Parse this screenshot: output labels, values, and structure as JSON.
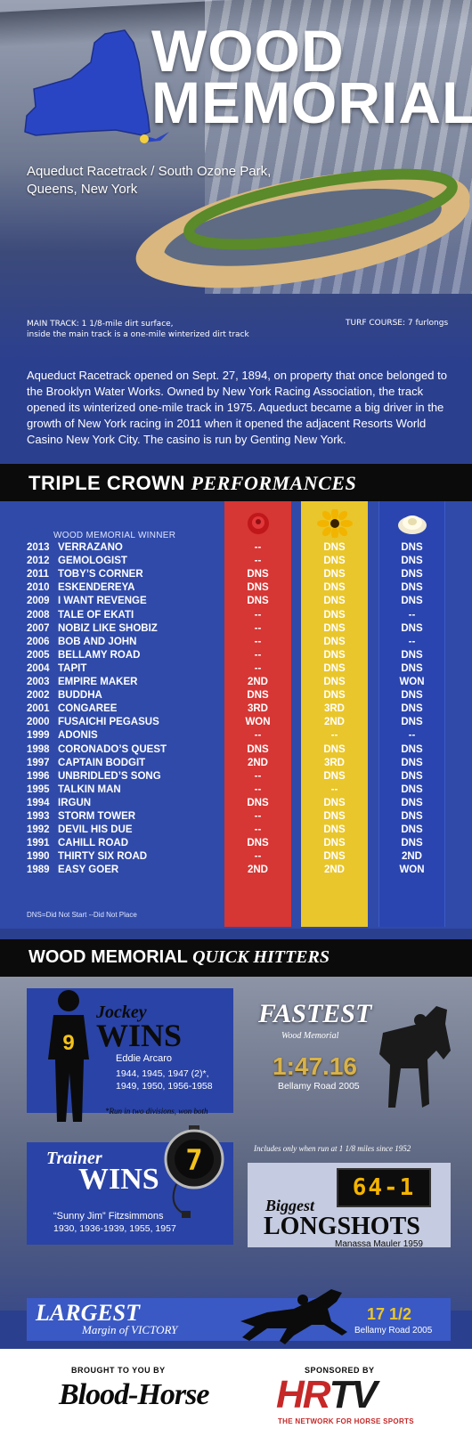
{
  "hero": {
    "title_line1": "WOOD",
    "title_line2": "MEMORIAL",
    "location": "Aqueduct Racetrack / South Ozone Park, Queens, New York",
    "main_track_note_1": "MAIN TRACK: 1 1/8-mile dirt surface,",
    "main_track_note_2": "inside the main track is a one-mile winterized dirt track",
    "turf_note": "TURF COURSE: 7 furlongs",
    "intro": "Aqueduct Racetrack opened on Sept. 27, 1894, on property that once belonged to the Brooklyn Water Works. Owned by New York Racing Association, the track opened its winterized one-mile track in 1975. Aqueduct became a big driver in the growth of New York racing in 2011 when it opened the adjacent Resorts World Casino New York City. The casino is run by Genting New York.",
    "colors": {
      "state_blue": "#2a45c4",
      "turf_green": "#5a8a2a",
      "dirt": "#d9b77f"
    }
  },
  "triple_crown": {
    "title_plain": "TRIPLE CROWN ",
    "title_italic": "PERFORMANCES",
    "column_header": "WOOD MEMORIAL WINNER",
    "flower_icons": [
      "rose-icon",
      "black-eyed-susan-icon",
      "carnation-icon"
    ],
    "column_colors": [
      "#d63634",
      "#e9c62b",
      "#2a45b0"
    ],
    "rows": [
      {
        "year": "2013",
        "horse": "VERRAZANO",
        "r1": "--",
        "r2": "DNS",
        "r3": "DNS"
      },
      {
        "year": "2012",
        "horse": "GEMOLOGIST",
        "r1": "--",
        "r2": "DNS",
        "r3": "DNS"
      },
      {
        "year": "2011",
        "horse": "TOBY’S CORNER",
        "r1": "DNS",
        "r2": "DNS",
        "r3": "DNS"
      },
      {
        "year": "2010",
        "horse": "ESKENDEREYA",
        "r1": "DNS",
        "r2": "DNS",
        "r3": "DNS"
      },
      {
        "year": "2009",
        "horse": "I WANT REVENGE",
        "r1": "DNS",
        "r2": "DNS",
        "r3": "DNS"
      },
      {
        "year": "2008",
        "horse": "TALE OF EKATI",
        "r1": "--",
        "r2": "DNS",
        "r3": "--"
      },
      {
        "year": "2007",
        "horse": "NOBIZ LIKE SHOBIZ",
        "r1": "--",
        "r2": "DNS",
        "r3": "DNS"
      },
      {
        "year": "2006",
        "horse": "BOB AND JOHN",
        "r1": "--",
        "r2": "DNS",
        "r3": "--"
      },
      {
        "year": "2005",
        "horse": "BELLAMY ROAD",
        "r1": "--",
        "r2": "DNS",
        "r3": "DNS"
      },
      {
        "year": "2004",
        "horse": "TAPIT",
        "r1": "--",
        "r2": "DNS",
        "r3": "DNS"
      },
      {
        "year": "2003",
        "horse": "EMPIRE MAKER",
        "r1": "2ND",
        "r2": "DNS",
        "r3": "WON"
      },
      {
        "year": "2002",
        "horse": "BUDDHA",
        "r1": "DNS",
        "r2": "DNS",
        "r3": "DNS"
      },
      {
        "year": "2001",
        "horse": "CONGAREE",
        "r1": "3RD",
        "r2": "3RD",
        "r3": "DNS"
      },
      {
        "year": "2000",
        "horse": "FUSAICHI PEGASUS",
        "r1": "WON",
        "r2": "2ND",
        "r3": "DNS"
      },
      {
        "year": "1999",
        "horse": "ADONIS",
        "r1": "--",
        "r2": "--",
        "r3": "--"
      },
      {
        "year": "1998",
        "horse": "CORONADO’S QUEST",
        "r1": "DNS",
        "r2": "DNS",
        "r3": "DNS"
      },
      {
        "year": "1997",
        "horse": "CAPTAIN BODGIT",
        "r1": "2ND",
        "r2": "3RD",
        "r3": "DNS"
      },
      {
        "year": "1996",
        "horse": "UNBRIDLED’S SONG",
        "r1": "--",
        "r2": "DNS",
        "r3": "DNS"
      },
      {
        "year": "1995",
        "horse": "TALKIN MAN",
        "r1": "--",
        "r2": "--",
        "r3": "DNS"
      },
      {
        "year": "1994",
        "horse": "IRGUN",
        "r1": "DNS",
        "r2": "DNS",
        "r3": "DNS"
      },
      {
        "year": "1993",
        "horse": "STORM TOWER",
        "r1": "--",
        "r2": "DNS",
        "r3": "DNS"
      },
      {
        "year": "1992",
        "horse": "DEVIL HIS DUE",
        "r1": "--",
        "r2": "DNS",
        "r3": "DNS"
      },
      {
        "year": "1991",
        "horse": "CAHILL ROAD",
        "r1": "DNS",
        "r2": "DNS",
        "r3": "DNS"
      },
      {
        "year": "1990",
        "horse": "THIRTY SIX ROAD",
        "r1": "--",
        "r2": "DNS",
        "r3": "2ND"
      },
      {
        "year": "1989",
        "horse": "EASY GOER",
        "r1": "2ND",
        "r2": "2ND",
        "r3": "WON"
      }
    ],
    "legend": "DNS=Did Not Start    --Did Not Place"
  },
  "quick_hitters": {
    "title_plain": "WOOD MEMORIAL ",
    "title_italic": "QUICK HITTERS",
    "jockey": {
      "number": "9",
      "word": "Jockey",
      "wins": "WINS",
      "name": "Eddie Arcaro",
      "years": "1944, 1945, 1947 (2)*, 1949, 1950, 1956-1958",
      "note": "*Run in two divisions, won both"
    },
    "fastest": {
      "title": "FASTEST",
      "subtitle": "Wood Memorial",
      "time": "1:47.16",
      "horse": "Bellamy Road 2005",
      "note": "Includes only when run at 1 1/8 miles since 1952"
    },
    "trainer": {
      "number": "7",
      "word": "Trainer",
      "wins": "WINS",
      "name": "“Sunny Jim” Fitzsimmons",
      "years": "1930, 1936-1939, 1955, 1957"
    },
    "longshot": {
      "odds": "64-1",
      "biggest": "Biggest",
      "longshots": "LONGSHOTS",
      "horse": "Manassa Mauler 1959"
    },
    "margin": {
      "largest": "LARGEST",
      "subtitle": "Margin of VICTORY",
      "value": "17 1/2",
      "horse": "Bellamy Road 2005"
    }
  },
  "footer": {
    "brought_by": "BROUGHT TO YOU BY",
    "bloodhorse": "Blood-Horse",
    "sponsored_by": "SPONSORED BY",
    "hrtv_hr": "HR",
    "hrtv_tv": "TV",
    "hrtv_tagline": "THE NETWORK FOR HORSE SPORTS"
  }
}
